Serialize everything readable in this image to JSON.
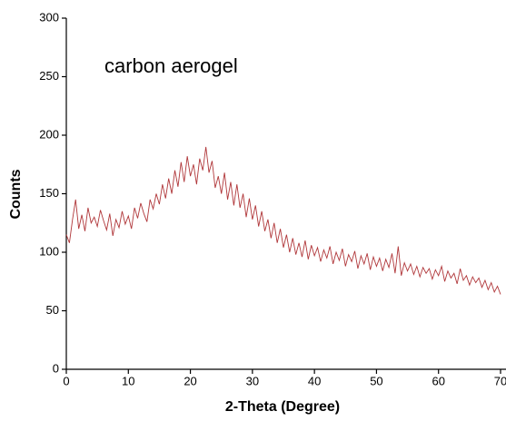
{
  "chart_data": {
    "type": "line",
    "annotation": "carbon aerogel",
    "xlabel": "2-Theta (Degree)",
    "ylabel": "Counts",
    "xlim": [
      0,
      70
    ],
    "xticks": [
      0,
      10,
      20,
      30,
      40,
      50,
      60,
      70
    ],
    "ylim": [
      0,
      300
    ],
    "yticks": [
      0,
      50,
      100,
      150,
      200,
      250,
      300
    ],
    "color": "#b0373a",
    "x": [
      0,
      0.5,
      1,
      1.5,
      2,
      2.5,
      3,
      3.5,
      4,
      4.5,
      5,
      5.5,
      6,
      6.5,
      7,
      7.5,
      8,
      8.5,
      9,
      9.5,
      10,
      10.5,
      11,
      11.5,
      12,
      12.5,
      13,
      13.5,
      14,
      14.5,
      15,
      15.5,
      16,
      16.5,
      17,
      17.5,
      18,
      18.5,
      19,
      19.5,
      20,
      20.5,
      21,
      21.5,
      22,
      22.5,
      23,
      23.5,
      24,
      24.5,
      25,
      25.5,
      26,
      26.5,
      27,
      27.5,
      28,
      28.5,
      29,
      29.5,
      30,
      30.5,
      31,
      31.5,
      32,
      32.5,
      33,
      33.5,
      34,
      34.5,
      35,
      35.5,
      36,
      36.5,
      37,
      37.5,
      38,
      38.5,
      39,
      39.5,
      40,
      40.5,
      41,
      41.5,
      42,
      42.5,
      43,
      43.5,
      44,
      44.5,
      45,
      45.5,
      46,
      46.5,
      47,
      47.5,
      48,
      48.5,
      49,
      49.5,
      50,
      50.5,
      51,
      51.5,
      52,
      52.5,
      53,
      53.5,
      54,
      54.5,
      55,
      55.5,
      56,
      56.5,
      57,
      57.5,
      58,
      58.5,
      59,
      59.5,
      60,
      60.5,
      61,
      61.5,
      62,
      62.5,
      63,
      63.5,
      64,
      64.5,
      65,
      65.5,
      66,
      66.5,
      67,
      67.5,
      68,
      68.5,
      69,
      69.5,
      70
    ],
    "values": [
      115,
      108,
      128,
      145,
      120,
      132,
      118,
      138,
      125,
      130,
      122,
      136,
      127,
      119,
      133,
      114,
      128,
      121,
      135,
      124,
      131,
      120,
      138,
      129,
      142,
      133,
      126,
      145,
      137,
      150,
      141,
      158,
      146,
      163,
      150,
      170,
      156,
      177,
      160,
      182,
      165,
      175,
      158,
      180,
      170,
      190,
      168,
      178,
      155,
      165,
      150,
      168,
      145,
      160,
      140,
      158,
      138,
      150,
      130,
      146,
      128,
      140,
      122,
      135,
      118,
      128,
      112,
      125,
      108,
      120,
      104,
      115,
      100,
      112,
      98,
      108,
      96,
      110,
      94,
      106,
      97,
      104,
      92,
      102,
      95,
      105,
      90,
      100,
      93,
      103,
      88,
      98,
      92,
      101,
      86,
      97,
      90,
      99,
      85,
      96,
      88,
      95,
      84,
      94,
      87,
      99,
      82,
      105,
      80,
      91,
      84,
      90,
      81,
      88,
      79,
      87,
      82,
      86,
      77,
      85,
      80,
      88,
      75,
      84,
      78,
      82,
      73,
      86,
      76,
      80,
      72,
      79,
      74,
      78,
      70,
      76,
      68,
      74,
      66,
      71,
      64
    ]
  }
}
